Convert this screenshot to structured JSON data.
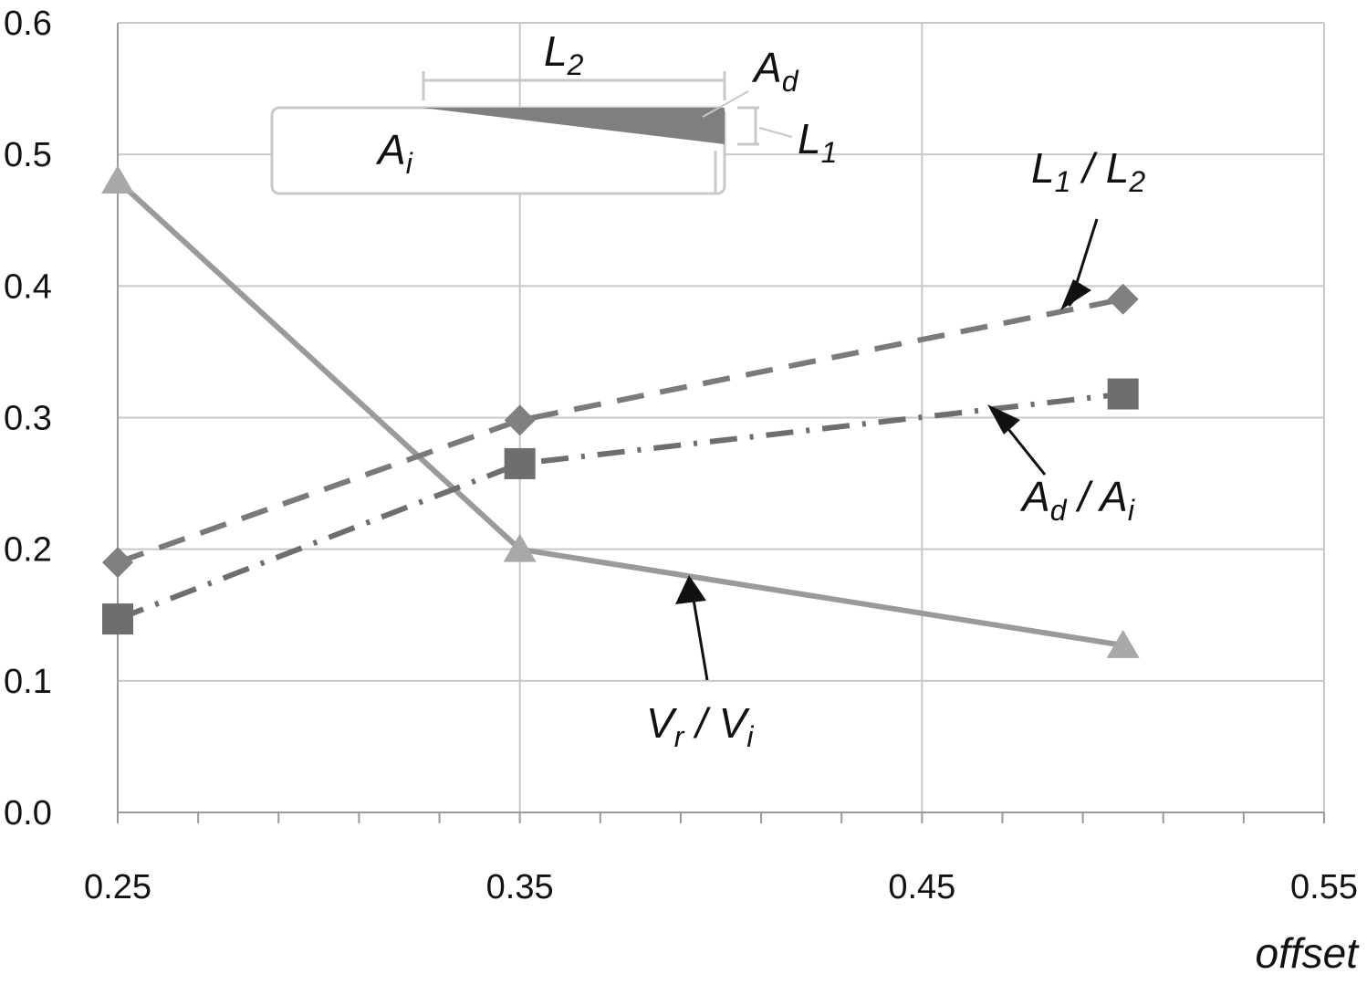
{
  "chart_data": {
    "type": "line",
    "xlabel": "offset",
    "ylabel": "",
    "xlim": [
      0.25,
      0.55
    ],
    "ylim": [
      0.0,
      0.6
    ],
    "x_ticks": [
      "0.25",
      "0.35",
      "0.45",
      "0.55"
    ],
    "y_ticks": [
      "0.0",
      "0.1",
      "0.2",
      "0.3",
      "0.4",
      "0.5",
      "0.6"
    ],
    "grid": true,
    "series": [
      {
        "key": "vr_vi",
        "label_main": [
          "V",
          "V"
        ],
        "label_sub": [
          "r",
          "i"
        ],
        "marker": "triangle",
        "line": "solid",
        "color": "#9a9a9a",
        "x": [
          0.25,
          0.35,
          0.5
        ],
        "y": [
          0.48,
          0.2,
          0.127
        ]
      },
      {
        "key": "l1_l2",
        "label_main": [
          "L",
          "L"
        ],
        "label_sub": [
          "1",
          "2"
        ],
        "marker": "diamond",
        "line": "dashed",
        "color": "#7a7a7a",
        "x": [
          0.25,
          0.35,
          0.5
        ],
        "y": [
          0.19,
          0.298,
          0.39
        ]
      },
      {
        "key": "ad_ai",
        "label_main": [
          "A",
          "A"
        ],
        "label_sub": [
          "d",
          "i"
        ],
        "marker": "square",
        "line": "dashdot",
        "color": "#6e6e6e",
        "x": [
          0.25,
          0.35,
          0.5
        ],
        "y": [
          0.147,
          0.265,
          0.318
        ]
      }
    ],
    "inset": {
      "labels": {
        "l2": [
          "L",
          "2"
        ],
        "ad": [
          "A",
          "d"
        ],
        "l1": [
          "L",
          "1"
        ],
        "ai": [
          "A",
          "i"
        ]
      }
    }
  }
}
